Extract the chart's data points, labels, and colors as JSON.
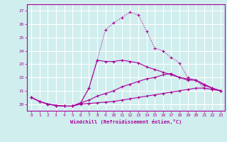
{
  "xlabel": "Windchill (Refroidissement éolien,°C)",
  "background_color": "#d0eeee",
  "grid_color": "#b0d8d8",
  "line_color": "#aa0099",
  "xlim": [
    -0.5,
    23.5
  ],
  "ylim": [
    19.5,
    27.5
  ],
  "yticks": [
    20,
    21,
    22,
    23,
    24,
    25,
    26,
    27
  ],
  "xticks": [
    0,
    1,
    2,
    3,
    4,
    5,
    6,
    7,
    8,
    9,
    10,
    11,
    12,
    13,
    14,
    15,
    16,
    17,
    18,
    19,
    20,
    21,
    22,
    23
  ],
  "lines": [
    {
      "x": [
        0,
        1,
        2,
        3,
        4,
        5,
        6,
        7,
        8,
        9,
        10,
        11,
        12,
        13,
        14,
        15,
        16,
        17,
        18,
        19,
        20,
        21,
        22,
        23
      ],
      "y": [
        20.5,
        20.2,
        20.0,
        19.9,
        19.85,
        19.85,
        20.1,
        21.2,
        23.3,
        25.6,
        26.1,
        26.5,
        26.9,
        26.7,
        25.5,
        24.2,
        24.0,
        23.5,
        23.1,
        22.0,
        21.8,
        21.2,
        21.1,
        21.0
      ],
      "linestyle": "dotted",
      "marker": "+"
    },
    {
      "x": [
        0,
        1,
        2,
        3,
        4,
        5,
        6,
        7,
        8,
        9,
        10,
        11,
        12,
        13,
        14,
        15,
        16,
        17,
        18,
        19,
        20,
        21,
        22,
        23
      ],
      "y": [
        20.5,
        20.2,
        20.0,
        19.9,
        19.85,
        19.85,
        20.1,
        21.2,
        23.3,
        23.2,
        23.2,
        23.3,
        23.2,
        23.1,
        22.8,
        22.6,
        22.4,
        22.2,
        22.0,
        21.8,
        21.8,
        21.5,
        21.2,
        21.0
      ],
      "linestyle": "solid",
      "marker": "+"
    },
    {
      "x": [
        0,
        1,
        2,
        3,
        4,
        5,
        6,
        7,
        8,
        9,
        10,
        11,
        12,
        13,
        14,
        15,
        16,
        17,
        18,
        19,
        20,
        21,
        22,
        23
      ],
      "y": [
        20.5,
        20.2,
        20.0,
        19.9,
        19.85,
        19.85,
        20.1,
        20.3,
        20.6,
        20.8,
        21.0,
        21.3,
        21.5,
        21.7,
        21.9,
        22.0,
        22.2,
        22.3,
        22.0,
        21.9,
        21.8,
        21.4,
        21.2,
        21.0
      ],
      "linestyle": "solid",
      "marker": "+"
    },
    {
      "x": [
        0,
        1,
        2,
        3,
        4,
        5,
        6,
        7,
        8,
        9,
        10,
        11,
        12,
        13,
        14,
        15,
        16,
        17,
        18,
        19,
        20,
        21,
        22,
        23
      ],
      "y": [
        20.5,
        20.2,
        20.0,
        19.9,
        19.85,
        19.85,
        20.0,
        20.05,
        20.1,
        20.15,
        20.2,
        20.3,
        20.4,
        20.5,
        20.6,
        20.7,
        20.8,
        20.9,
        21.0,
        21.1,
        21.2,
        21.2,
        21.1,
        21.0
      ],
      "linestyle": "solid",
      "marker": "+"
    }
  ]
}
